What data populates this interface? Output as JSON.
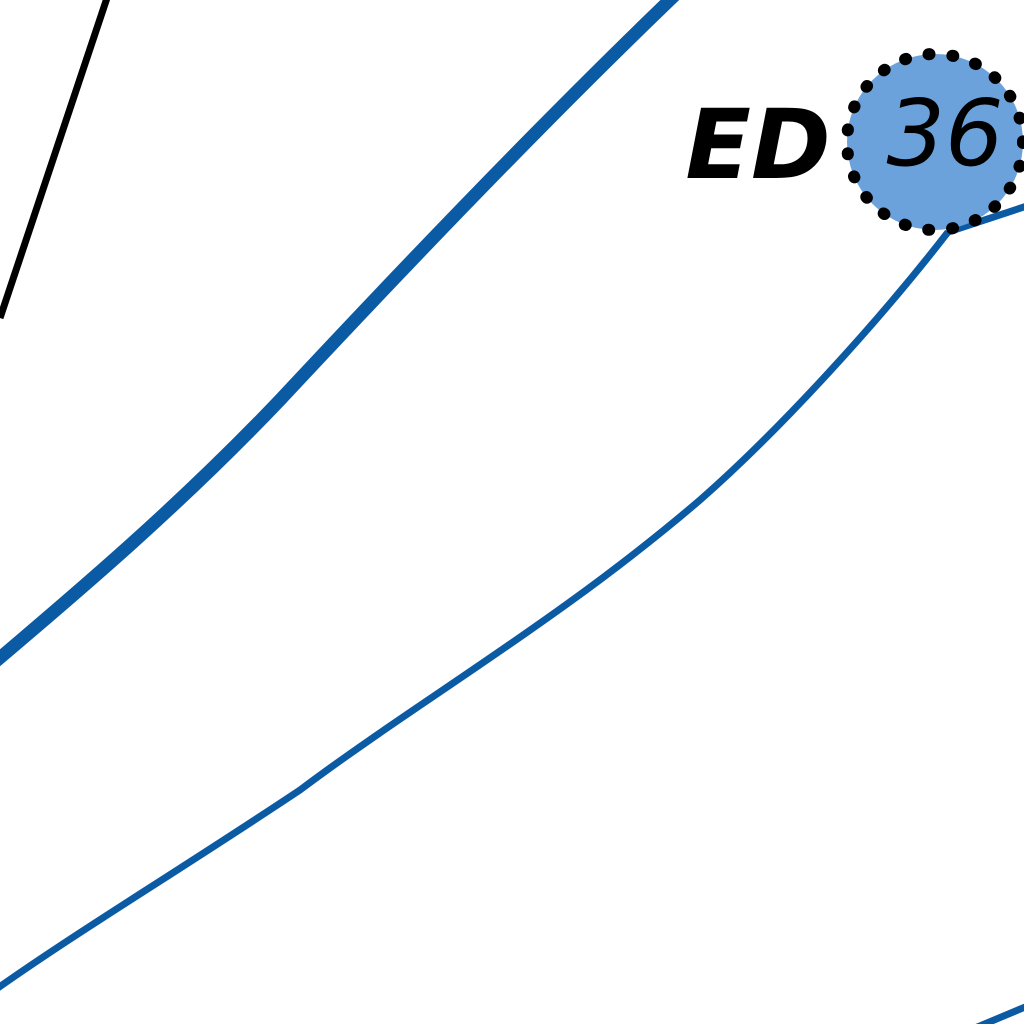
{
  "map": {
    "label_prefix": "ED",
    "label_number": "36",
    "colors": {
      "background": "#ffffff",
      "route_line": "#0b5aa4",
      "boundary_line": "#000000",
      "badge_fill": "#6ba2dc",
      "badge_dots": "#000000",
      "text": "#000000"
    }
  }
}
